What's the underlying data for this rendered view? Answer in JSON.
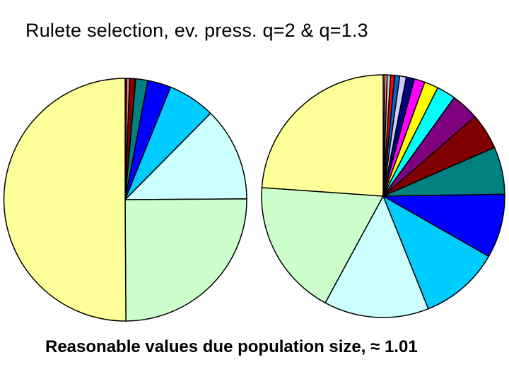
{
  "slide": {
    "title": "Rulete selection, ev. press. q=2 & q=1.3",
    "caption": "Reasonable values due population size, ≈ 1.01"
  },
  "chart_data": [
    {
      "type": "pie",
      "title": "",
      "start": "top",
      "direction": "clockwise",
      "slices": [
        {
          "value": 0.2,
          "color": "#ff00ff"
        },
        {
          "value": 0.4,
          "color": "#ff8080"
        },
        {
          "value": 0.8,
          "color": "#800000"
        },
        {
          "value": 1.6,
          "color": "#008080"
        },
        {
          "value": 3.1,
          "color": "#0000ff"
        },
        {
          "value": 6.3,
          "color": "#00ccff"
        },
        {
          "value": 12.5,
          "color": "#ccffff"
        },
        {
          "value": 25.0,
          "color": "#ccffcc"
        },
        {
          "value": 50.1,
          "color": "#ffff99"
        }
      ]
    },
    {
      "type": "pie",
      "title": "",
      "start": "top",
      "direction": "clockwise",
      "slices": [
        {
          "value": 0.2,
          "color": "#ffffff"
        },
        {
          "value": 0.3,
          "color": "#ff8080"
        },
        {
          "value": 0.4,
          "color": "#cccccc"
        },
        {
          "value": 0.5,
          "color": "#ff0000"
        },
        {
          "value": 0.6,
          "color": "#0066cc"
        },
        {
          "value": 0.8,
          "color": "#ccccff"
        },
        {
          "value": 1.0,
          "color": "#000080"
        },
        {
          "value": 1.3,
          "color": "#ff00ff"
        },
        {
          "value": 1.7,
          "color": "#ffff00"
        },
        {
          "value": 2.3,
          "color": "#00ffff"
        },
        {
          "value": 3.4,
          "color": "#800080"
        },
        {
          "value": 4.4,
          "color": "#800000"
        },
        {
          "value": 5.8,
          "color": "#008080"
        },
        {
          "value": 7.8,
          "color": "#0000ff"
        },
        {
          "value": 9.8,
          "color": "#00ccff"
        },
        {
          "value": 12.8,
          "color": "#ccffff"
        },
        {
          "value": 16.7,
          "color": "#ccffcc"
        },
        {
          "value": 21.9,
          "color": "#ffff99"
        }
      ]
    }
  ]
}
